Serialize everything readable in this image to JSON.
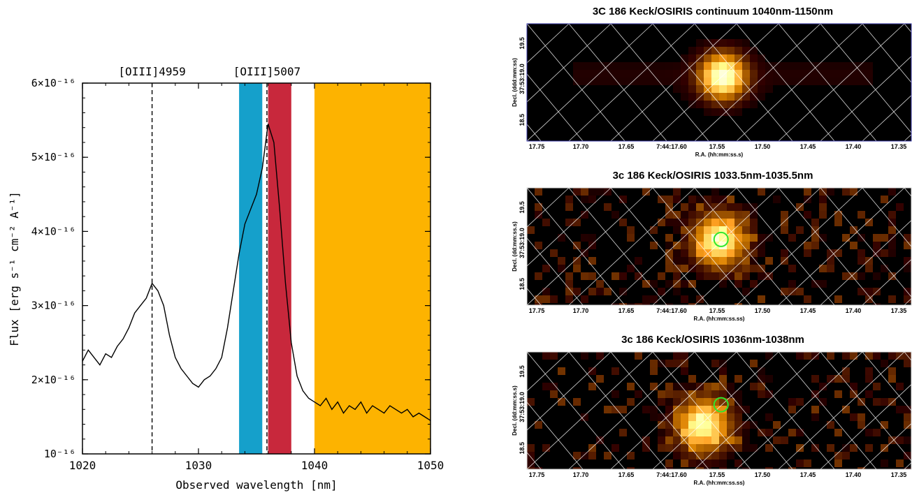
{
  "chart_data": [
    {
      "type": "line",
      "xlabel": "Observed wavelength [nm]",
      "ylabel": "Flux [erg s⁻¹ cm⁻² A⁻¹]",
      "xlim": [
        1020,
        1050
      ],
      "ylim": [
        1e-16,
        6e-16
      ],
      "x_ticks": [
        "1020",
        "1030",
        "1040",
        "1050"
      ],
      "y_ticks": [
        {
          "value": 1e-16,
          "label": "10⁻¹⁶"
        },
        {
          "value": 2e-16,
          "label": "2×10⁻¹⁶"
        },
        {
          "value": 3e-16,
          "label": "3×10⁻¹⁶"
        },
        {
          "value": 4e-16,
          "label": "4×10⁻¹⁶"
        },
        {
          "value": 5e-16,
          "label": "5×10⁻¹⁶"
        },
        {
          "value": 6e-16,
          "label": "6×10⁻¹⁶"
        }
      ],
      "lines": [
        {
          "label": "[OIII]4959",
          "x": 1026.0
        },
        {
          "label": "[OIII]5007",
          "x": 1035.9
        }
      ],
      "bands": [
        {
          "x0": 1033.5,
          "x1": 1035.5,
          "color": "#15a0cb"
        },
        {
          "x0": 1036.0,
          "x1": 1038.0,
          "color": "#c8283c"
        },
        {
          "x0": 1040.0,
          "x1": 1050.0,
          "color": "#fdb300"
        }
      ],
      "series": [
        {
          "x": [
            1020.0,
            1020.5,
            1021.0,
            1021.5,
            1022.0,
            1022.5,
            1023.0,
            1023.5,
            1024.0,
            1024.5,
            1025.0,
            1025.5,
            1026.0,
            1026.5,
            1027.0,
            1027.5,
            1028.0,
            1028.5,
            1029.0,
            1029.5,
            1030.0,
            1030.5,
            1031.0,
            1031.5,
            1032.0,
            1032.5,
            1033.0,
            1033.5,
            1034.0,
            1034.5,
            1035.0,
            1035.5,
            1036.0,
            1036.5,
            1037.0,
            1037.5,
            1038.0,
            1038.5,
            1039.0,
            1039.5,
            1040.0,
            1040.5,
            1041.0,
            1041.5,
            1042.0,
            1042.5,
            1043.0,
            1043.5,
            1044.0,
            1044.5,
            1045.0,
            1045.5,
            1046.0,
            1046.5,
            1047.0,
            1047.5,
            1048.0,
            1048.5,
            1049.0,
            1049.5,
            1050.0
          ],
          "y": [
            2.25e-16,
            2.4e-16,
            2.3e-16,
            2.2e-16,
            2.35e-16,
            2.3e-16,
            2.45e-16,
            2.55e-16,
            2.7e-16,
            2.9e-16,
            3e-16,
            3.1e-16,
            3.3e-16,
            3.2e-16,
            3e-16,
            2.6e-16,
            2.3e-16,
            2.15e-16,
            2.05e-16,
            1.95e-16,
            1.9e-16,
            2e-16,
            2.05e-16,
            2.15e-16,
            2.3e-16,
            2.7e-16,
            3.2e-16,
            3.7e-16,
            4.1e-16,
            4.3e-16,
            4.5e-16,
            4.85e-16,
            5.45e-16,
            5.2e-16,
            4.3e-16,
            3.3e-16,
            2.5e-16,
            2.05e-16,
            1.85e-16,
            1.75e-16,
            1.7e-16,
            1.65e-16,
            1.75e-16,
            1.6e-16,
            1.7e-16,
            1.55e-16,
            1.65e-16,
            1.6e-16,
            1.7e-16,
            1.55e-16,
            1.65e-16,
            1.6e-16,
            1.55e-16,
            1.65e-16,
            1.6e-16,
            1.55e-16,
            1.6e-16,
            1.5e-16,
            1.55e-16,
            1.5e-16,
            1.45e-16
          ]
        }
      ]
    },
    {
      "type": "heatmap",
      "title": "3C 186 Keck/OSIRIS continuum 1040nm-1150nm",
      "xlabel": "R.A. (hh:mm:ss.s)",
      "ylabel": "Decl. (ddd:mm:ss)",
      "x_ticks": [
        "17.75",
        "17.70",
        "17.65",
        "7:44:17.60",
        "17.55",
        "17.50",
        "17.45",
        "17.40",
        "17.35"
      ],
      "y_ticks": [
        "19.5",
        "37:53:19.0",
        "18.5"
      ],
      "circle": false
    },
    {
      "type": "heatmap",
      "title": "3c 186 Keck/OSIRIS 1033.5nm-1035.5nm",
      "xlabel": "R.A. (hh:mm:ss.ss)",
      "ylabel": "Decl. (dd:mm:ss.s)",
      "x_ticks": [
        "17.75",
        "17.70",
        "17.65",
        "7:44:17.60",
        "17.55",
        "17.50",
        "17.45",
        "17.40",
        "17.35"
      ],
      "y_ticks": [
        "19.5",
        "37:53:19.0",
        "18.5"
      ],
      "circle": true,
      "circle_color": "#2ee82e"
    },
    {
      "type": "heatmap",
      "title": "3c 186 Keck/OSIRIS 1036nm-1038nm",
      "xlabel": "R.A. (hh:mm:ss.ss)",
      "ylabel": "Decl. (dd:mm:ss.s)",
      "x_ticks": [
        "17.75",
        "17.70",
        "17.65",
        "7:44:17.60",
        "17.55",
        "17.50",
        "17.45",
        "17.40",
        "17.35"
      ],
      "y_ticks": [
        "19.5",
        "37:53:19.0",
        "18.5"
      ],
      "circle": true,
      "circle_color": "#2ee82e"
    }
  ]
}
